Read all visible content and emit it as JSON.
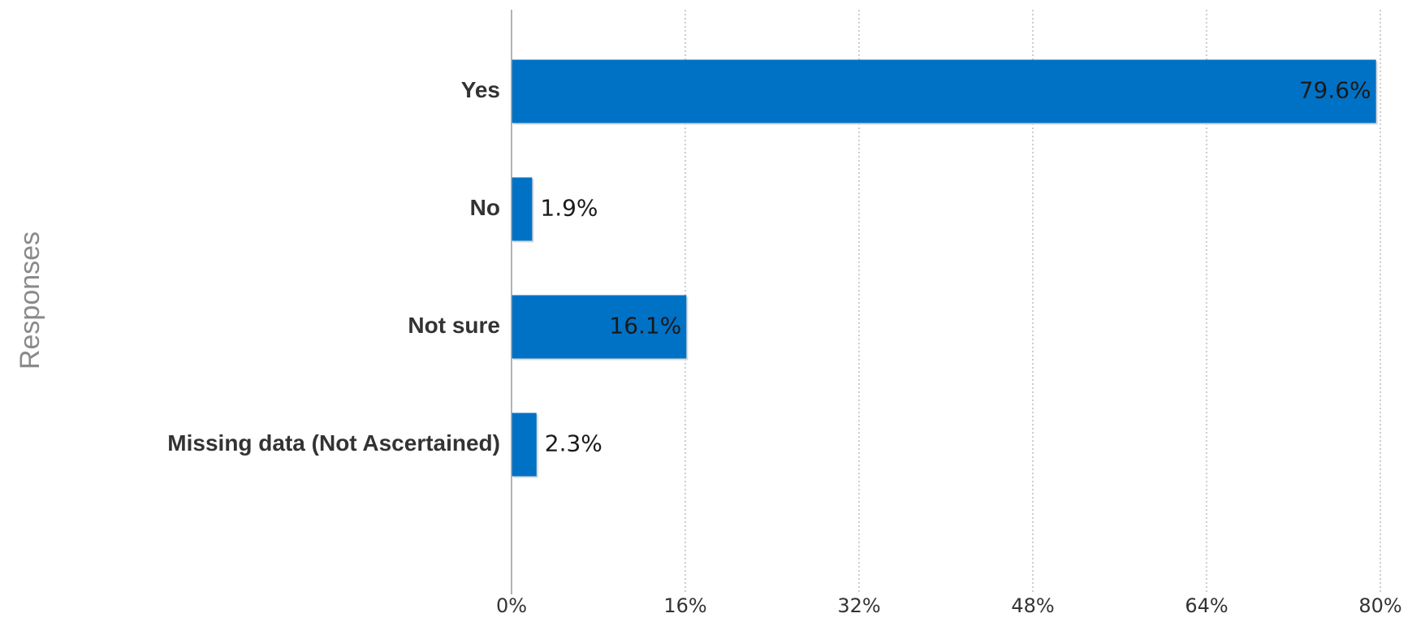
{
  "chart_data": {
    "type": "bar",
    "orientation": "horizontal",
    "title": "",
    "xlabel": "",
    "ylabel": "Responses",
    "categories": [
      "Yes",
      "No",
      "Not sure",
      "Missing data (Not Ascertained)"
    ],
    "values": [
      79.6,
      1.9,
      16.1,
      2.3
    ],
    "value_labels": [
      "79.6%",
      "1.9%",
      "16.1%",
      "2.3%"
    ],
    "xlim": [
      0,
      80
    ],
    "x_ticks": [
      0,
      16,
      32,
      48,
      64,
      80
    ],
    "x_tick_labels": [
      "0%",
      "16%",
      "32%",
      "48%",
      "64%",
      "80%"
    ],
    "grid": "vertical dotted",
    "legend": "none",
    "colors": {
      "bar": "#0072c6",
      "axis": "#9a9a9a",
      "grid": "#bdbdbd"
    }
  }
}
